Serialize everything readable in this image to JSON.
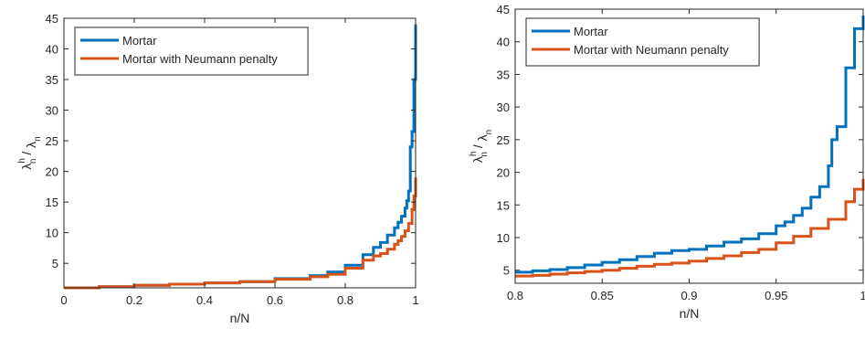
{
  "chart_data": [
    {
      "type": "line",
      "title": "",
      "xlabel": "n/N",
      "ylabel": {
        "base": "λ",
        "sup": "h",
        "sub": "n",
        "sep": " / ",
        "base2": "λ",
        "sub2": "n"
      },
      "xlim": [
        0,
        1
      ],
      "ylim": [
        1,
        45
      ],
      "xticks": [
        0,
        0.2,
        0.4,
        0.6,
        0.8,
        1
      ],
      "xtick_labels": [
        "0",
        "0.2",
        "0.4",
        "0.6",
        "0.8",
        "1"
      ],
      "yticks": [
        5,
        10,
        15,
        20,
        25,
        30,
        35,
        40,
        45
      ],
      "ytick_labels": [
        "5",
        "10",
        "15",
        "20",
        "25",
        "30",
        "35",
        "40",
        "45"
      ],
      "grid": false,
      "legend_position": "top-left",
      "series": [
        {
          "name": "Mortar",
          "color": "#0072BD",
          "x": [
            0,
            0.1,
            0.2,
            0.3,
            0.4,
            0.5,
            0.6,
            0.7,
            0.75,
            0.8,
            0.85,
            0.88,
            0.9,
            0.92,
            0.94,
            0.95,
            0.96,
            0.97,
            0.975,
            0.98,
            0.985,
            0.99,
            0.995,
            1.0
          ],
          "y": [
            1.0,
            1.2,
            1.4,
            1.6,
            1.8,
            2.0,
            2.5,
            3.0,
            3.6,
            4.7,
            6.4,
            7.6,
            8.4,
            9.6,
            10.8,
            11.7,
            12.7,
            14.0,
            15.2,
            16.8,
            24.0,
            26.5,
            35.0,
            44.0
          ]
        },
        {
          "name": "Mortar with Neumann penalty",
          "color": "#D95319",
          "x": [
            0,
            0.1,
            0.2,
            0.3,
            0.4,
            0.5,
            0.6,
            0.7,
            0.75,
            0.8,
            0.85,
            0.88,
            0.9,
            0.92,
            0.94,
            0.95,
            0.96,
            0.97,
            0.98,
            0.99,
            0.995,
            1.0
          ],
          "y": [
            1.0,
            1.2,
            1.4,
            1.6,
            1.8,
            2.0,
            2.4,
            2.8,
            3.2,
            4.2,
            5.5,
            6.2,
            6.6,
            7.3,
            8.1,
            8.7,
            9.4,
            10.3,
            11.5,
            13.8,
            16.0,
            19.0
          ]
        }
      ]
    },
    {
      "type": "line",
      "title": "",
      "xlabel": "n/N",
      "ylabel": {
        "base": "λ",
        "sup": "h",
        "sub": "n",
        "sep": " / ",
        "base2": "λ",
        "sub2": "n"
      },
      "xlim": [
        0.8,
        1
      ],
      "ylim": [
        3,
        45
      ],
      "xticks": [
        0.8,
        0.85,
        0.9,
        0.95,
        1
      ],
      "xtick_labels": [
        "0.8",
        "0.85",
        "0.9",
        "0.95",
        "1"
      ],
      "yticks": [
        5,
        10,
        15,
        20,
        25,
        30,
        35,
        40,
        45
      ],
      "ytick_labels": [
        "5",
        "10",
        "15",
        "20",
        "25",
        "30",
        "35",
        "40",
        "45"
      ],
      "grid": false,
      "legend_position": "top-left",
      "series": [
        {
          "name": "Mortar",
          "color": "#0072BD",
          "x": [
            0.8,
            0.81,
            0.82,
            0.83,
            0.84,
            0.85,
            0.86,
            0.87,
            0.88,
            0.89,
            0.9,
            0.91,
            0.92,
            0.93,
            0.94,
            0.95,
            0.955,
            0.96,
            0.965,
            0.97,
            0.975,
            0.98,
            0.982,
            0.985,
            0.99,
            0.995,
            1.0
          ],
          "y": [
            4.7,
            4.9,
            5.1,
            5.4,
            5.8,
            6.2,
            6.6,
            7.1,
            7.6,
            8.0,
            8.2,
            8.7,
            9.3,
            9.8,
            10.6,
            11.8,
            12.4,
            13.4,
            14.5,
            16.2,
            17.8,
            21.0,
            25.0,
            27.0,
            36.0,
            42.0,
            44.0
          ]
        },
        {
          "name": "Mortar with Neumann penalty",
          "color": "#D95319",
          "x": [
            0.8,
            0.81,
            0.82,
            0.83,
            0.84,
            0.85,
            0.86,
            0.87,
            0.88,
            0.89,
            0.9,
            0.91,
            0.92,
            0.93,
            0.94,
            0.95,
            0.96,
            0.97,
            0.98,
            0.99,
            0.995,
            1.0
          ],
          "y": [
            4.1,
            4.2,
            4.4,
            4.6,
            4.8,
            5.0,
            5.3,
            5.6,
            5.9,
            6.1,
            6.4,
            6.8,
            7.2,
            7.7,
            8.2,
            9.2,
            10.2,
            11.4,
            12.8,
            15.5,
            17.4,
            19.0
          ]
        }
      ]
    }
  ]
}
